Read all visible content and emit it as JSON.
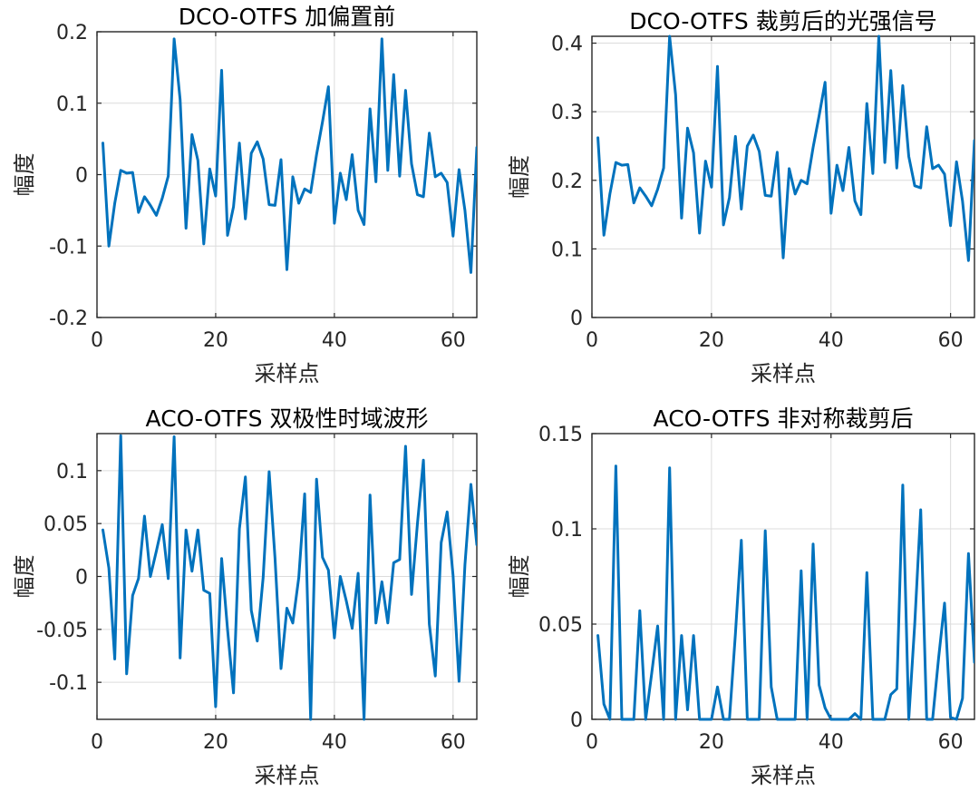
{
  "chart_data": [
    {
      "type": "line",
      "title": "DCO-OTFS 加偏置前",
      "xlabel": "采样点",
      "ylabel": "幅度",
      "xlim": [
        0,
        64
      ],
      "ylim": [
        -0.2,
        0.2
      ],
      "xticks": [
        0,
        20,
        40,
        60
      ],
      "xtick_labels": [
        "0",
        "20",
        "40",
        "60"
      ],
      "yticks": [
        -0.2,
        -0.1,
        0,
        0.1,
        0.2
      ],
      "ytick_labels": [
        "-0.2",
        "-0.1",
        "0",
        "0.1",
        "0.2"
      ],
      "grid": true,
      "color": "#0072BD",
      "x": [
        1,
        2,
        3,
        4,
        5,
        6,
        7,
        8,
        9,
        10,
        11,
        12,
        13,
        14,
        15,
        16,
        17,
        18,
        19,
        20,
        21,
        22,
        23,
        24,
        25,
        26,
        27,
        28,
        29,
        30,
        31,
        32,
        33,
        34,
        35,
        36,
        37,
        38,
        39,
        40,
        41,
        42,
        43,
        44,
        45,
        46,
        47,
        48,
        49,
        50,
        51,
        52,
        53,
        54,
        55,
        56,
        57,
        58,
        59,
        60,
        61,
        62,
        63,
        64
      ],
      "y": [
        0.044,
        -0.1,
        -0.04,
        0.006,
        0.002,
        0.003,
        -0.053,
        -0.031,
        -0.043,
        -0.057,
        -0.033,
        -0.002,
        0.19,
        0.105,
        -0.075,
        0.056,
        0.02,
        -0.097,
        0.008,
        -0.03,
        0.146,
        -0.085,
        -0.045,
        0.044,
        -0.062,
        0.03,
        0.046,
        0.022,
        -0.042,
        -0.043,
        0.021,
        -0.133,
        -0.003,
        -0.04,
        -0.02,
        -0.025,
        0.028,
        0.074,
        0.123,
        -0.068,
        0.002,
        -0.035,
        0.028,
        -0.05,
        -0.07,
        0.092,
        -0.01,
        0.19,
        0.006,
        0.14,
        -0.002,
        0.118,
        0.015,
        -0.028,
        -0.031,
        0.058,
        -0.003,
        0.002,
        -0.011,
        -0.086,
        0.007,
        -0.05,
        -0.137,
        0.038
      ]
    },
    {
      "type": "line",
      "title": "DCO-OTFS 裁剪后的光强信号",
      "xlabel": "采样点",
      "ylabel": "幅度",
      "xlim": [
        0,
        64
      ],
      "ylim": [
        0,
        0.41
      ],
      "xticks": [
        0,
        20,
        40,
        60
      ],
      "xtick_labels": [
        "0",
        "20",
        "40",
        "60"
      ],
      "yticks": [
        0,
        0.1,
        0.2,
        0.3,
        0.4
      ],
      "ytick_labels": [
        "0",
        "0.1",
        "0.2",
        "0.3",
        "0.4"
      ],
      "grid": true,
      "color": "#0072BD",
      "x": [
        1,
        2,
        3,
        4,
        5,
        6,
        7,
        8,
        9,
        10,
        11,
        12,
        13,
        14,
        15,
        16,
        17,
        18,
        19,
        20,
        21,
        22,
        23,
        24,
        25,
        26,
        27,
        28,
        29,
        30,
        31,
        32,
        33,
        34,
        35,
        36,
        37,
        38,
        39,
        40,
        41,
        42,
        43,
        44,
        45,
        46,
        47,
        48,
        49,
        50,
        51,
        52,
        53,
        54,
        55,
        56,
        57,
        58,
        59,
        60,
        61,
        62,
        63,
        64
      ],
      "y": [
        0.262,
        0.12,
        0.18,
        0.226,
        0.222,
        0.223,
        0.167,
        0.189,
        0.177,
        0.163,
        0.187,
        0.218,
        0.41,
        0.325,
        0.145,
        0.276,
        0.24,
        0.123,
        0.228,
        0.19,
        0.366,
        0.135,
        0.175,
        0.264,
        0.158,
        0.25,
        0.266,
        0.242,
        0.178,
        0.177,
        0.241,
        0.087,
        0.217,
        0.18,
        0.2,
        0.195,
        0.248,
        0.294,
        0.343,
        0.152,
        0.222,
        0.185,
        0.248,
        0.17,
        0.15,
        0.312,
        0.21,
        0.41,
        0.226,
        0.36,
        0.218,
        0.338,
        0.235,
        0.192,
        0.189,
        0.278,
        0.217,
        0.222,
        0.209,
        0.134,
        0.227,
        0.17,
        0.083,
        0.258
      ]
    },
    {
      "type": "line",
      "title": "ACO-OTFS 双极性时域波形",
      "xlabel": "采样点",
      "ylabel": "幅度",
      "xlim": [
        0,
        64
      ],
      "ylim": [
        -0.135,
        0.135
      ],
      "xticks": [
        0,
        20,
        40,
        60
      ],
      "xtick_labels": [
        "0",
        "20",
        "40",
        "60"
      ],
      "yticks": [
        -0.1,
        -0.05,
        0,
        0.05,
        0.1
      ],
      "ytick_labels": [
        "-0.1",
        "-0.05",
        "0",
        "0.05",
        "0.1"
      ],
      "grid": true,
      "color": "#0072BD",
      "x": [
        1,
        2,
        3,
        4,
        5,
        6,
        7,
        8,
        9,
        10,
        11,
        12,
        13,
        14,
        15,
        16,
        17,
        18,
        19,
        20,
        21,
        22,
        23,
        24,
        25,
        26,
        27,
        28,
        29,
        30,
        31,
        32,
        33,
        34,
        35,
        36,
        37,
        38,
        39,
        40,
        41,
        42,
        43,
        44,
        45,
        46,
        47,
        48,
        49,
        50,
        51,
        52,
        53,
        54,
        55,
        56,
        57,
        58,
        59,
        60,
        61,
        62,
        63,
        64
      ],
      "y": [
        0.044,
        0.008,
        -0.078,
        0.133,
        -0.092,
        -0.018,
        -0.002,
        0.057,
        0.0,
        0.024,
        0.049,
        -0.002,
        0.132,
        -0.077,
        0.044,
        0.005,
        0.044,
        -0.013,
        -0.016,
        -0.123,
        0.017,
        -0.05,
        -0.11,
        0.045,
        0.094,
        -0.032,
        -0.061,
        -0.001,
        0.099,
        0.017,
        -0.087,
        -0.03,
        -0.044,
        -0.001,
        0.078,
        -0.135,
        0.092,
        0.018,
        0.006,
        -0.058,
        0.0,
        -0.023,
        -0.049,
        0.003,
        -0.135,
        0.077,
        -0.044,
        -0.005,
        -0.044,
        0.013,
        0.016,
        0.123,
        -0.017,
        0.05,
        0.11,
        -0.045,
        -0.094,
        0.032,
        0.061,
        0.001,
        -0.099,
        0.011,
        0.087,
        0.03
      ]
    },
    {
      "type": "line",
      "title": "ACO-OTFS 非对称裁剪后",
      "xlabel": "采样点",
      "ylabel": "幅度",
      "xlim": [
        0,
        64
      ],
      "ylim": [
        0,
        0.15
      ],
      "xticks": [
        0,
        20,
        40,
        60
      ],
      "xtick_labels": [
        "0",
        "20",
        "40",
        "60"
      ],
      "yticks": [
        0,
        0.05,
        0.1,
        0.15
      ],
      "ytick_labels": [
        "0",
        "0.05",
        "0.1",
        "0.15"
      ],
      "grid": true,
      "color": "#0072BD",
      "x": [
        1,
        2,
        3,
        4,
        5,
        6,
        7,
        8,
        9,
        10,
        11,
        12,
        13,
        14,
        15,
        16,
        17,
        18,
        19,
        20,
        21,
        22,
        23,
        24,
        25,
        26,
        27,
        28,
        29,
        30,
        31,
        32,
        33,
        34,
        35,
        36,
        37,
        38,
        39,
        40,
        41,
        42,
        43,
        44,
        45,
        46,
        47,
        48,
        49,
        50,
        51,
        52,
        53,
        54,
        55,
        56,
        57,
        58,
        59,
        60,
        61,
        62,
        63,
        64
      ],
      "y": [
        0.044,
        0.008,
        0,
        0.133,
        0,
        0,
        0,
        0.057,
        0,
        0.024,
        0.049,
        0,
        0.132,
        0,
        0.044,
        0.005,
        0.044,
        0,
        0,
        0,
        0.017,
        0,
        0,
        0.045,
        0.094,
        0,
        0,
        0,
        0.099,
        0.017,
        0,
        0,
        0,
        0,
        0.078,
        0,
        0.092,
        0.018,
        0.006,
        0,
        0,
        0,
        0,
        0.003,
        0,
        0.077,
        0,
        0,
        0,
        0.013,
        0.016,
        0.123,
        0,
        0.05,
        0.11,
        0,
        0,
        0.032,
        0.061,
        0.001,
        0,
        0.011,
        0.087,
        0.03
      ]
    }
  ]
}
